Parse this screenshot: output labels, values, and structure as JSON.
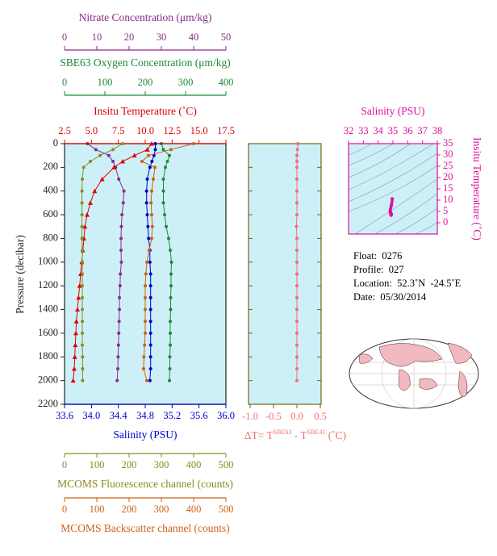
{
  "chart_data": [
    {
      "type": "line",
      "y": [
        0,
        50,
        100,
        150,
        200,
        300,
        400,
        500,
        600,
        700,
        800,
        900,
        1000,
        1100,
        1200,
        1300,
        1400,
        1500,
        1600,
        1700,
        1800,
        1900,
        2000
      ],
      "ylabel": "Pressure (decibar)",
      "ylim": [
        0,
        2200
      ],
      "yticks": [
        0,
        200,
        400,
        600,
        800,
        1000,
        1200,
        1400,
        1600,
        1800,
        2000,
        2200
      ],
      "axes": [
        {
          "label": "Nitrate Concentration (μm/kg)",
          "side": "top",
          "color": "#8b2a8b",
          "marker": "circle",
          "xlim": [
            0,
            50
          ],
          "xticks": [
            0,
            10,
            20,
            30,
            40,
            50
          ],
          "values": [
            7.1,
            9.7,
            13.7,
            15.0,
            15.8,
            16.8,
            18.4,
            18.2,
            17.8,
            17.6,
            17.5,
            17.5,
            17.6,
            17.3,
            17.2,
            17.0,
            17.0,
            16.9,
            16.8,
            16.7,
            16.6,
            16.5,
            16.3
          ]
        },
        {
          "label": "SBE63 Oxygen Concentration (μm/kg)",
          "side": "top",
          "color": "#1a8a3a",
          "marker": "circle",
          "xlim": [
            0,
            400
          ],
          "xticks": [
            0,
            100,
            200,
            300,
            400
          ],
          "values": [
            240,
            245,
            260,
            255,
            250,
            245,
            245,
            245,
            248,
            252,
            258,
            262,
            265,
            264,
            264,
            263,
            263,
            262,
            262,
            262,
            261,
            261,
            260
          ]
        },
        {
          "label": "Insitu Temperature (˚C)",
          "side": "top",
          "color": "#e00000",
          "marker": "triangle",
          "xlim": [
            2.5,
            17.5
          ],
          "xticks": [
            2.5,
            {
              "value": 5,
              "label": "5.0"
            },
            7.5,
            {
              "value": 10,
              "label": "10.0"
            },
            12.5,
            {
              "value": 15,
              "label": "15.0"
            },
            17.5
          ],
          "values": [
            10.6,
            10.2,
            9.0,
            7.9,
            7.1,
            6.0,
            5.3,
            4.9,
            4.6,
            4.4,
            4.3,
            4.2,
            4.1,
            4.0,
            3.9,
            3.8,
            3.7,
            3.6,
            3.55,
            3.5,
            3.45,
            3.4,
            3.3
          ]
        },
        {
          "label": "Salinity (PSU)",
          "side": "bottom",
          "color": "#0000cc",
          "marker": "circle",
          "xlim": [
            33.6,
            36.0
          ],
          "xticks": [
            33.6,
            {
              "value": 34,
              "label": "34.0"
            },
            34.4,
            34.8,
            35.2,
            35.6,
            {
              "value": 36,
              "label": "36.0"
            }
          ],
          "values": [
            34.95,
            34.95,
            34.93,
            34.9,
            34.87,
            34.83,
            34.82,
            34.82,
            34.83,
            34.84,
            34.85,
            34.87,
            34.87,
            34.88,
            34.88,
            34.88,
            34.88,
            34.88,
            34.88,
            34.88,
            34.88,
            34.88,
            34.87
          ]
        },
        {
          "label": "MCOMS Fluorescence channel (counts)",
          "side": "bottom",
          "color": "#8a8a20",
          "marker": "circle",
          "xlim": [
            0,
            500
          ],
          "xticks": [
            0,
            100,
            200,
            300,
            400,
            500
          ],
          "values": [
            180,
            150,
            110,
            80,
            59,
            55,
            54,
            54,
            54,
            54,
            54,
            55,
            55,
            55,
            55,
            55,
            55,
            55,
            55,
            55,
            56,
            56,
            56
          ]
        },
        {
          "label": "MCOMS Backscatter channel (counts)",
          "side": "bottom",
          "color": "#d06010",
          "marker": "circle",
          "xlim": [
            0,
            500
          ],
          "xticks": [
            0,
            100,
            200,
            300,
            400,
            500
          ],
          "values": [
            400,
            330,
            260,
            240,
            280,
            275,
            270,
            268,
            270,
            272,
            270,
            262,
            255,
            252,
            250,
            250,
            250,
            250,
            250,
            248,
            246,
            245,
            255
          ]
        }
      ]
    },
    {
      "type": "line",
      "color": "#f07070",
      "xlabel_parts": [
        "ΔT= T",
        "SBE63",
        " - T",
        "SBE41",
        " (˚C)"
      ],
      "xlim": [
        -1.0,
        0.5
      ],
      "xticks": [
        {
          "value": -1,
          "label": "-1.0"
        },
        -0.5,
        {
          "value": 0,
          "label": "0.0"
        },
        0.5
      ],
      "values": [
        0.02,
        0.01,
        0.0,
        0.0,
        0.0,
        0.0,
        0.0,
        0.0,
        0.0,
        -0.01,
        0.0,
        0.0,
        0.0,
        0.0,
        0.0,
        0.0,
        0.0,
        0.0,
        0.0,
        0.0,
        0.0,
        0.0,
        0.0
      ]
    },
    {
      "type": "scatter",
      "color": "#e0109a",
      "title": "Salinity (PSU)",
      "ylabel": "Insitu Temperature (˚C)",
      "xlim": [
        32,
        38
      ],
      "xticks": [
        32,
        33,
        34,
        35,
        36,
        37,
        38
      ],
      "ylim": [
        -5,
        35
      ],
      "yticks": [
        0,
        5,
        10,
        15,
        20,
        25,
        30,
        35
      ]
    }
  ],
  "info": [
    "Float:  0276",
    "Profile:  027",
    "Location:  52.3˚N  -24.5˚E",
    "Date:  05/30/2014"
  ]
}
